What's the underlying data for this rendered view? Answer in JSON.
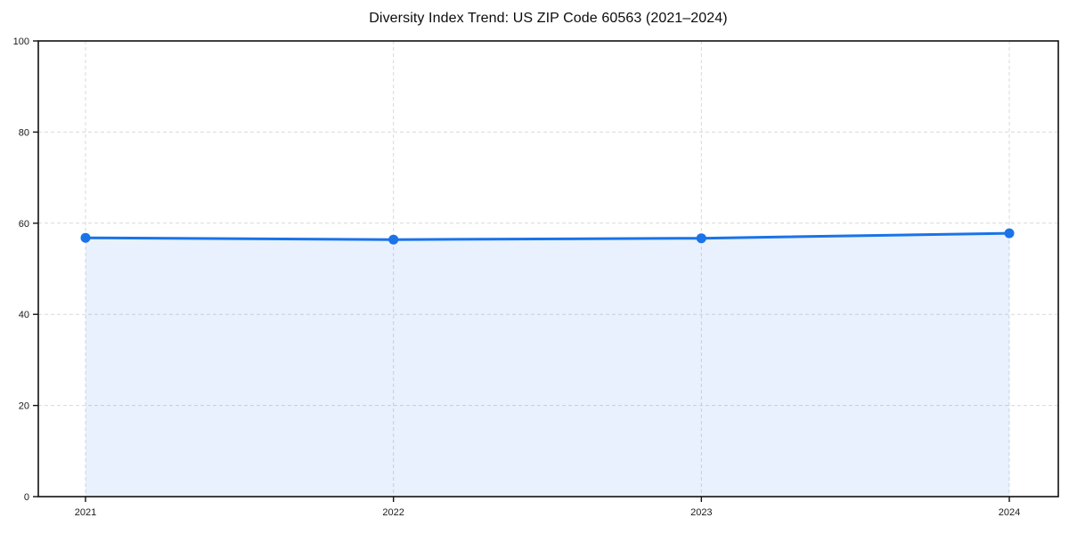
{
  "chart_data": {
    "type": "area",
    "title": "Diversity Index Trend: US ZIP Code 60563 (2021–2024)",
    "categories": [
      "2021",
      "2022",
      "2023",
      "2024"
    ],
    "series": [
      {
        "name": "Diversity Index",
        "values": [
          56.8,
          56.4,
          56.7,
          57.8
        ]
      }
    ],
    "xlabel": "",
    "ylabel": "",
    "ylim": [
      0,
      100
    ],
    "yticks": [
      0,
      20,
      40,
      60,
      80,
      100
    ],
    "grid": "dashed",
    "legend_position": "none",
    "colors": {
      "line": "#1a73e8",
      "marker": "#1a73e8",
      "area_fill": "rgba(26,115,232,0.10)",
      "gridline": "#d9d9d9",
      "spine": "#111111",
      "tick_label": "#1a1a1a",
      "title_text": "#0c0c0c"
    }
  }
}
